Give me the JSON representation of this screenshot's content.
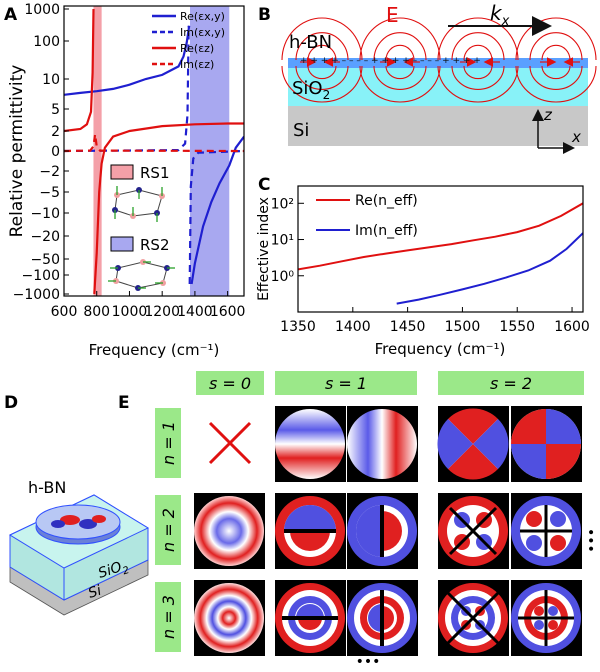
{
  "panels": {
    "a": "A",
    "b": "B",
    "c": "C",
    "d": "D",
    "e": "E"
  },
  "chart_data": [
    {
      "panel": "A",
      "type": "line",
      "ylabel": "Relative permittivity",
      "xlabel": "Frequency (cm⁻¹)",
      "xlim": [
        600,
        1700
      ],
      "x_ticks": [
        "600",
        "800",
        "1000",
        "1200",
        "1400",
        "1600"
      ],
      "y_ticks": [
        "1000",
        "100",
        "10",
        "5",
        "2",
        "0",
        "-2",
        "-5",
        "-10",
        "-20",
        "-50",
        "-100",
        "-1000"
      ],
      "y_scale": "piecewise-symlog",
      "legend": [
        {
          "text": "Re(εx,y)",
          "color": "#1f1fd0",
          "style": "solid"
        },
        {
          "text": "Im(εx,y)",
          "color": "#1f1fd0",
          "style": "dashed"
        },
        {
          "text": "Re(εz)",
          "color": "#e01010",
          "style": "solid"
        },
        {
          "text": "Im(εz)",
          "color": "#e01010",
          "style": "dashed"
        }
      ],
      "bands": [
        {
          "label": "RS1",
          "range": [
            780,
            830
          ],
          "color": "#f4a0a8"
        },
        {
          "label": "RS2",
          "range": [
            1370,
            1610
          ],
          "color": "#a8a8f0"
        }
      ],
      "series": [
        {
          "key": "re_xy",
          "x": [
            600,
            700,
            800,
            900,
            1000,
            1100,
            1200,
            1300,
            1330,
            1350,
            1365,
            1380,
            1400,
            1450,
            1500,
            1550,
            1610,
            1650,
            1700
          ],
          "y": [
            7.0,
            7.3,
            7.6,
            8.0,
            8.8,
            10.0,
            13.0,
            22.0,
            40.0,
            90.0,
            300.0,
            -300.0,
            -60.0,
            -15.0,
            -7.0,
            -3.5,
            -1.2,
            0.2,
            1.2
          ]
        },
        {
          "key": "im_xy",
          "x": [
            600,
            1300,
            1340,
            1355,
            1362,
            1368,
            1375,
            1390,
            1420,
            1700
          ],
          "y": [
            0.0,
            0.05,
            0.5,
            4.0,
            300.0,
            -300.0,
            -4.0,
            -0.5,
            -0.1,
            0.0
          ]
        },
        {
          "key": "re_z",
          "x": [
            600,
            700,
            740,
            765,
            775,
            780,
            785,
            800,
            815,
            830,
            850,
            900,
            1000,
            1200,
            1400,
            1600,
            1700
          ],
          "y": [
            2.0,
            2.2,
            2.7,
            4.5,
            15.0,
            1000.0,
            -1000.0,
            -40.0,
            -5.0,
            -1.0,
            0.2,
            1.2,
            2.0,
            2.5,
            2.7,
            2.8,
            2.8
          ]
        },
        {
          "key": "im_z",
          "x": [
            600,
            760,
            780,
            790,
            800,
            820,
            1700
          ],
          "y": [
            0.0,
            0.02,
            0.3,
            1.5,
            0.3,
            0.02,
            0.0
          ]
        }
      ]
    },
    {
      "panel": "C",
      "type": "line",
      "ylabel": "Effective index",
      "xlabel": "Frequency (cm⁻¹)",
      "xlim": [
        1350,
        1610
      ],
      "ylim": [
        0.1,
        300
      ],
      "y_scale": "log",
      "x_ticks": [
        "1350",
        "1400",
        "1450",
        "1500",
        "1550",
        "1600"
      ],
      "y_ticks": [
        "10⁰",
        "10¹",
        "10²"
      ],
      "series": [
        {
          "name": "Re(n_eff)",
          "color": "#e01010",
          "x": [
            1350,
            1370,
            1390,
            1410,
            1430,
            1450,
            1470,
            1490,
            1510,
            1530,
            1550,
            1570,
            1590,
            1610
          ],
          "y": [
            1.5,
            1.9,
            2.5,
            3.3,
            4.1,
            5.0,
            6.1,
            7.5,
            9.5,
            12.0,
            16.0,
            24.0,
            45.0,
            100.0
          ]
        },
        {
          "name": "Im(n_eff)",
          "color": "#1f1fd0",
          "x": [
            1440,
            1460,
            1480,
            1500,
            1520,
            1540,
            1560,
            1580,
            1595,
            1610
          ],
          "y": [
            0.17,
            0.22,
            0.3,
            0.42,
            0.6,
            0.9,
            1.4,
            2.6,
            5.5,
            15.0
          ]
        }
      ]
    }
  ],
  "panel_b": {
    "hbn_label": "h-BN",
    "sio2_label": "SiO",
    "sio2_sub": "2",
    "si_label": "Si",
    "field_label": "E",
    "k_label": "k",
    "k_sub": "x",
    "axis_z": "z",
    "axis_x": "x",
    "charges": "+ + + + – – – – + + + + – – – – + + + +"
  },
  "panel_d": {
    "hbn_label": "h-BN",
    "sio2_label": "SiO",
    "sio2_sub": "2",
    "si_label": "Si"
  },
  "panel_e": {
    "s_headers": [
      "s = 0",
      "s = 1",
      "s = 2"
    ],
    "n_labels": [
      "n = 1",
      "n = 2",
      "n = 3"
    ],
    "ellipsis": "•••"
  }
}
